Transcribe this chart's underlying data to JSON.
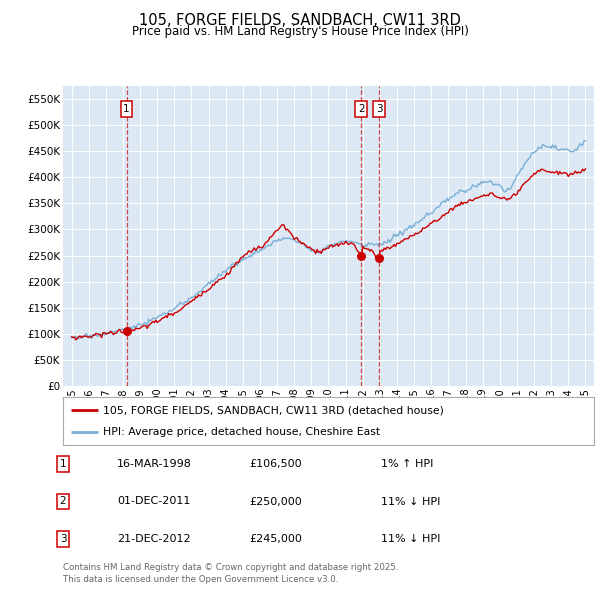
{
  "title": "105, FORGE FIELDS, SANDBACH, CW11 3RD",
  "subtitle": "Price paid vs. HM Land Registry's House Price Index (HPI)",
  "legend_line1": "105, FORGE FIELDS, SANDBACH, CW11 3RD (detached house)",
  "legend_line2": "HPI: Average price, detached house, Cheshire East",
  "footnote1": "Contains HM Land Registry data © Crown copyright and database right 2025.",
  "footnote2": "This data is licensed under the Open Government Licence v3.0.",
  "transactions": [
    {
      "id": 1,
      "date": "16-MAR-1998",
      "price": 106500,
      "note": "1% ↑ HPI",
      "year_x": 1998.21
    },
    {
      "id": 2,
      "date": "01-DEC-2011",
      "price": 250000,
      "note": "11% ↓ HPI",
      "year_x": 2011.92
    },
    {
      "id": 3,
      "date": "21-DEC-2012",
      "price": 245000,
      "note": "11% ↓ HPI",
      "year_x": 2012.97
    }
  ],
  "hpi_color": "#7bafd4",
  "price_color": "#cc0000",
  "background_color": "#dce9f5",
  "plot_bg_color": "#dce9f5",
  "ylim": [
    0,
    575000
  ],
  "yticks": [
    0,
    50000,
    100000,
    150000,
    200000,
    250000,
    300000,
    350000,
    400000,
    450000,
    500000,
    550000
  ],
  "xlim_start": 1994.5,
  "xlim_end": 2025.5,
  "xticks": [
    1995,
    1996,
    1997,
    1998,
    1999,
    2000,
    2001,
    2002,
    2003,
    2004,
    2005,
    2006,
    2007,
    2008,
    2009,
    2010,
    2011,
    2012,
    2013,
    2014,
    2015,
    2016,
    2017,
    2018,
    2019,
    2020,
    2021,
    2022,
    2023,
    2024,
    2025
  ]
}
